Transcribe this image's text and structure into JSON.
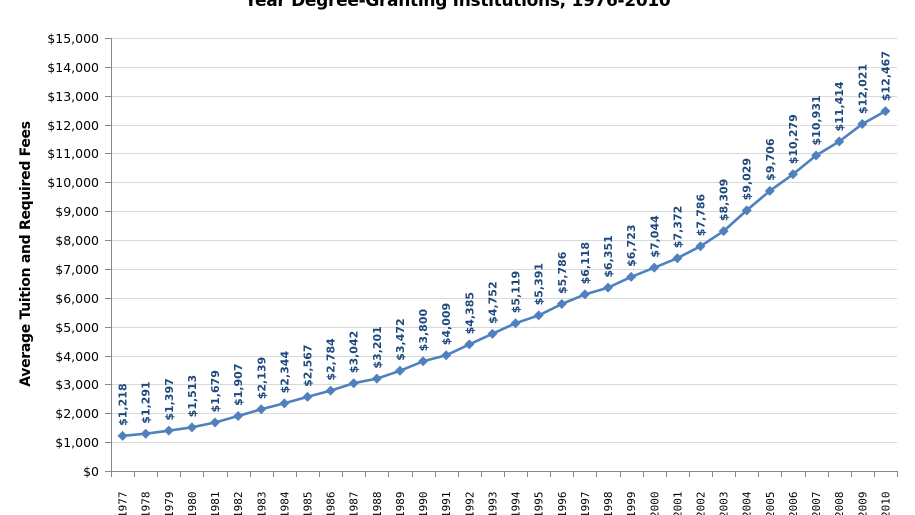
{
  "chart_data": {
    "type": "line",
    "title": "Year Degree-Granting Institutions, 1976-2010",
    "xlabel": "",
    "ylabel": "Average Tuition and Required Fees",
    "ylim": [
      0,
      15000
    ],
    "y_ticks": [
      "$0",
      "$1,000",
      "$2,000",
      "$3,000",
      "$4,000",
      "$5,000",
      "$6,000",
      "$7,000",
      "$8,000",
      "$9,000",
      "$10,000",
      "$11,000",
      "$12,000",
      "$13,000",
      "$14,000",
      "$15,000"
    ],
    "y_tick_values": [
      0,
      1000,
      2000,
      3000,
      4000,
      5000,
      6000,
      7000,
      8000,
      9000,
      10000,
      11000,
      12000,
      13000,
      14000,
      15000
    ],
    "grid": "horizontal",
    "legend": "none",
    "categories": [
      "1977",
      "1978",
      "1979",
      "1980",
      "1981",
      "1982",
      "1983",
      "1984",
      "1985",
      "1986",
      "1987",
      "1988",
      "1989",
      "1990",
      "1991",
      "1992",
      "1993",
      "1994",
      "1995",
      "1996",
      "1997",
      "1998",
      "1999",
      "2000",
      "2001",
      "2002",
      "2003",
      "2004",
      "2005",
      "2006",
      "2007",
      "2008",
      "2009",
      "2010"
    ],
    "series": [
      {
        "name": "Average Tuition and Required Fees",
        "color": "#4F81BD",
        "marker": "diamond",
        "values": [
          1218,
          1291,
          1397,
          1513,
          1679,
          1907,
          2139,
          2344,
          2567,
          2784,
          3042,
          3201,
          3472,
          3800,
          4009,
          4385,
          4752,
          5119,
          5391,
          5786,
          6118,
          6351,
          6723,
          7044,
          7372,
          7786,
          8309,
          9029,
          9706,
          10279,
          10931,
          11414,
          12021,
          12467
        ],
        "labels": [
          "$1,218",
          "$1,291",
          "$1,397",
          "$1,513",
          "$1,679",
          "$1,907",
          "$2,139",
          "$2,344",
          "$2,567",
          "$2,784",
          "$3,042",
          "$3,201",
          "$3,472",
          "$3,800",
          "$4,009",
          "$4,385",
          "$4,752",
          "$5,119",
          "$5,391",
          "$5,786",
          "$6,118",
          "$6,351",
          "$6,723",
          "$7,044",
          "$7,372",
          "$7,786",
          "$8,309",
          "$9,029",
          "$9,706",
          "$10,279",
          "$10,931",
          "$11,414",
          "$12,021",
          "$12,467"
        ]
      }
    ]
  },
  "colors": {
    "line": "#4F81BD",
    "data_label": "#1F497D",
    "grid": "#D9D9D9",
    "axis": "#868686"
  }
}
